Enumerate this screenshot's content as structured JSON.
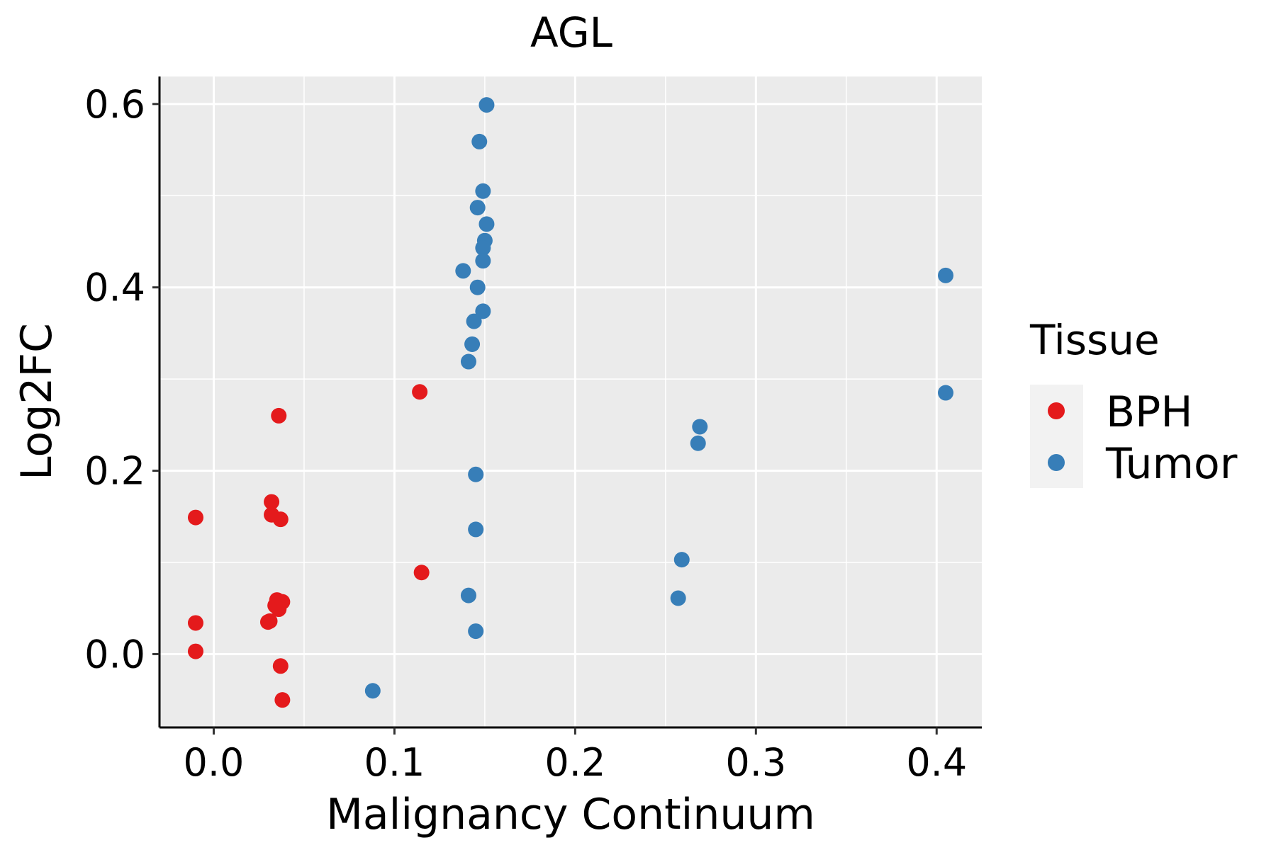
{
  "chart_data": {
    "type": "scatter",
    "title": "AGL",
    "xlabel": "Malignancy Continuum",
    "ylabel": "Log2FC",
    "xlim": [
      -0.03,
      0.425
    ],
    "ylim": [
      -0.08,
      0.63
    ],
    "x_ticks": [
      0.0,
      0.1,
      0.2,
      0.3,
      0.4
    ],
    "x_tick_labels": [
      "0.0",
      "0.1",
      "0.2",
      "0.3",
      "0.4"
    ],
    "y_ticks": [
      0.0,
      0.2,
      0.4,
      0.6
    ],
    "y_tick_labels": [
      "0.0",
      "0.2",
      "0.4",
      "0.6"
    ],
    "grid": true,
    "panel_background": "#EBEBEB",
    "legend": {
      "title": "Tissue",
      "position": "right",
      "entries": [
        {
          "label": "BPH",
          "color": "#E41A1C"
        },
        {
          "label": "Tumor",
          "color": "#377EB8"
        }
      ]
    },
    "series": [
      {
        "name": "BPH",
        "color": "#E41A1C",
        "points": [
          [
            -0.01,
            0.149
          ],
          [
            -0.01,
            0.034
          ],
          [
            -0.01,
            0.003
          ],
          [
            0.032,
            0.166
          ],
          [
            0.032,
            0.152
          ],
          [
            0.037,
            0.147
          ],
          [
            0.036,
            0.26
          ],
          [
            0.035,
            0.059
          ],
          [
            0.038,
            0.057
          ],
          [
            0.034,
            0.053
          ],
          [
            0.036,
            0.049
          ],
          [
            0.031,
            0.036
          ],
          [
            0.03,
            0.035
          ],
          [
            0.037,
            -0.013
          ],
          [
            0.038,
            -0.05
          ],
          [
            0.114,
            0.286
          ],
          [
            0.115,
            0.089
          ]
        ]
      },
      {
        "name": "Tumor",
        "color": "#377EB8",
        "points": [
          [
            0.151,
            0.599
          ],
          [
            0.147,
            0.559
          ],
          [
            0.149,
            0.505
          ],
          [
            0.146,
            0.487
          ],
          [
            0.151,
            0.469
          ],
          [
            0.15,
            0.451
          ],
          [
            0.149,
            0.443
          ],
          [
            0.149,
            0.429
          ],
          [
            0.138,
            0.418
          ],
          [
            0.146,
            0.4
          ],
          [
            0.149,
            0.374
          ],
          [
            0.144,
            0.363
          ],
          [
            0.143,
            0.338
          ],
          [
            0.141,
            0.319
          ],
          [
            0.145,
            0.196
          ],
          [
            0.145,
            0.136
          ],
          [
            0.141,
            0.064
          ],
          [
            0.145,
            0.025
          ],
          [
            0.088,
            -0.04
          ],
          [
            0.269,
            0.248
          ],
          [
            0.268,
            0.23
          ],
          [
            0.259,
            0.103
          ],
          [
            0.257,
            0.061
          ],
          [
            0.405,
            0.413
          ],
          [
            0.405,
            0.285
          ]
        ]
      }
    ]
  }
}
